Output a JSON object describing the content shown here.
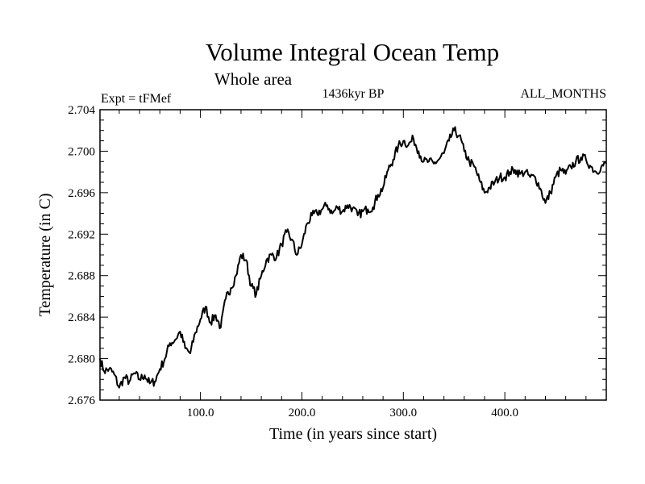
{
  "chart_data": {
    "type": "line",
    "title": "Volume Integral Ocean Temp",
    "subtitle": "Whole area",
    "left_string": "Expt = tFMef",
    "center_string": "1436kyr BP",
    "right_string": "ALL_MONTHS",
    "xlabel": "Time (in years since start)",
    "ylabel": "Temperature (in C)",
    "xlim": [
      1,
      500
    ],
    "ylim": [
      2.676,
      2.704
    ],
    "xticks": [
      100,
      200,
      300,
      400
    ],
    "xtick_labels": [
      "100.0",
      "200.0",
      "300.0",
      "400.0"
    ],
    "yticks": [
      2.676,
      2.68,
      2.684,
      2.688,
      2.692,
      2.696,
      2.7,
      2.704
    ],
    "ytick_labels": [
      "2.676",
      "2.680",
      "2.684",
      "2.688",
      "2.692",
      "2.696",
      "2.700",
      "2.704"
    ],
    "series": [
      {
        "name": "Volume Integral Ocean Temp",
        "x": [
          1,
          5,
          10,
          15,
          20,
          25,
          30,
          35,
          40,
          45,
          50,
          55,
          60,
          65,
          70,
          75,
          80,
          85,
          90,
          95,
          100,
          105,
          110,
          115,
          120,
          125,
          130,
          135,
          140,
          145,
          150,
          155,
          160,
          165,
          170,
          175,
          180,
          185,
          190,
          195,
          200,
          205,
          210,
          215,
          220,
          225,
          230,
          235,
          240,
          245,
          250,
          255,
          260,
          265,
          270,
          275,
          280,
          285,
          290,
          295,
          300,
          305,
          310,
          315,
          320,
          325,
          330,
          335,
          340,
          345,
          350,
          355,
          360,
          365,
          370,
          375,
          380,
          385,
          390,
          395,
          400,
          405,
          410,
          415,
          420,
          425,
          430,
          435,
          440,
          445,
          450,
          455,
          460,
          465,
          470,
          475,
          480,
          485,
          490,
          495,
          500
        ],
        "y": [
          2.68,
          2.6788,
          2.679,
          2.6785,
          2.6772,
          2.6782,
          2.6778,
          2.6786,
          2.678,
          2.6784,
          2.6776,
          2.6778,
          2.679,
          2.68,
          2.6815,
          2.6818,
          2.6826,
          2.681,
          2.6805,
          2.6825,
          2.6838,
          2.685,
          2.6835,
          2.6842,
          2.683,
          2.6858,
          2.6868,
          2.688,
          2.69,
          2.6895,
          2.687,
          2.6862,
          2.688,
          2.6895,
          2.69,
          2.6898,
          2.691,
          2.6922,
          2.6915,
          2.69,
          2.691,
          2.693,
          2.6938,
          2.694,
          2.6944,
          2.6948,
          2.694,
          2.6946,
          2.6942,
          2.6948,
          2.6945,
          2.6938,
          2.6942,
          2.6944,
          2.6946,
          2.6958,
          2.6965,
          2.6982,
          2.6992,
          2.7005,
          2.701,
          2.7006,
          2.7012,
          2.7,
          2.699,
          2.699,
          2.6988,
          2.6992,
          2.6998,
          2.701,
          2.702,
          2.7015,
          2.7,
          2.699,
          2.6985,
          2.6972,
          2.696,
          2.6965,
          2.697,
          2.6975,
          2.6975,
          2.698,
          2.6982,
          2.6978,
          2.698,
          2.6975,
          2.6975,
          2.6964,
          2.695,
          2.696,
          2.6975,
          2.6982,
          2.6978,
          2.6985,
          2.699,
          2.6994,
          2.6992,
          2.6985,
          2.698,
          2.6985,
          2.6988
        ]
      }
    ]
  }
}
